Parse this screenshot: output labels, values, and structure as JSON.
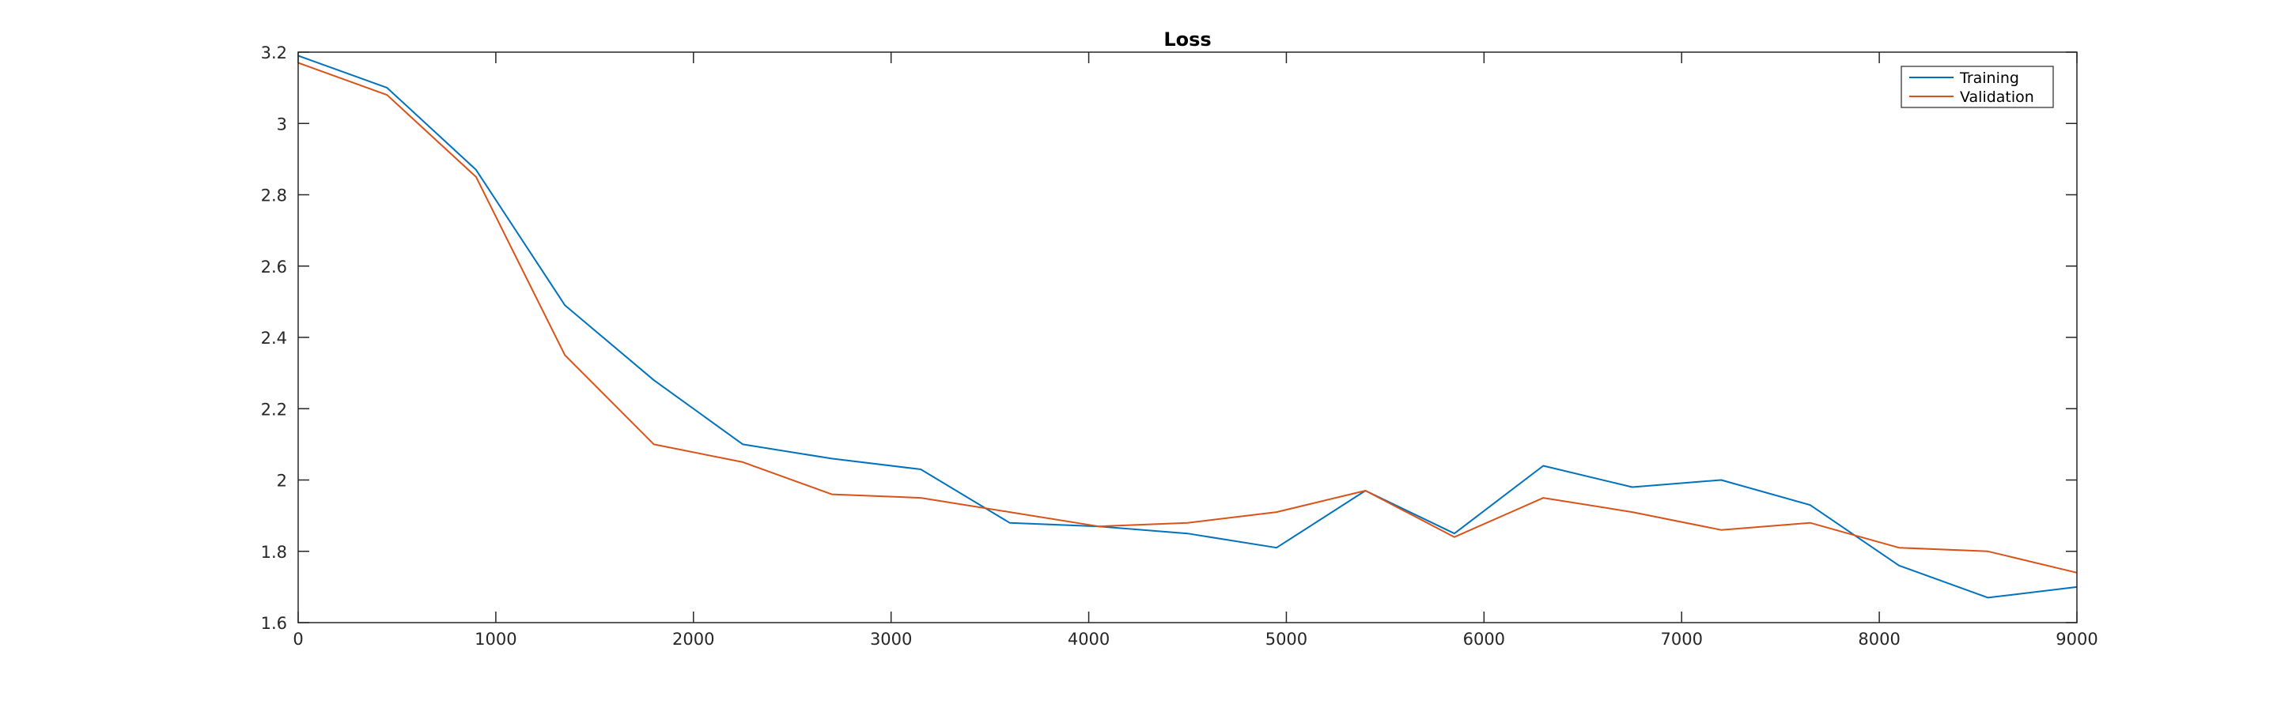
{
  "chart_data": {
    "type": "line",
    "title": "Loss",
    "xlabel": "",
    "ylabel": "",
    "xlim": [
      0,
      9000
    ],
    "ylim": [
      1.6,
      3.2
    ],
    "xticks": [
      0,
      1000,
      2000,
      3000,
      4000,
      5000,
      6000,
      7000,
      8000,
      9000
    ],
    "yticks": [
      1.6,
      1.8,
      2,
      2.2,
      2.4,
      2.6,
      2.8,
      3,
      3.2
    ],
    "ytick_labels": [
      "1.6",
      "1.8",
      "2",
      "2.2",
      "2.4",
      "2.6",
      "2.8",
      "3",
      "3.2"
    ],
    "grid": false,
    "legend_position": "top-right",
    "x": [
      0,
      450,
      900,
      1350,
      1800,
      2250,
      2700,
      3150,
      3600,
      4050,
      4500,
      4950,
      5400,
      5850,
      6300,
      6750,
      7200,
      7650,
      8100,
      8550,
      9000
    ],
    "series": [
      {
        "name": "Training",
        "color": "#0072BD",
        "values": [
          3.19,
          3.1,
          2.87,
          2.49,
          2.28,
          2.1,
          2.06,
          2.03,
          1.88,
          1.87,
          1.85,
          1.81,
          1.97,
          1.85,
          2.04,
          1.98,
          2.0,
          1.93,
          1.76,
          1.67,
          1.7
        ]
      },
      {
        "name": "Validation",
        "color": "#D95319",
        "values": [
          3.17,
          3.08,
          2.85,
          2.35,
          2.1,
          2.05,
          1.96,
          1.95,
          1.91,
          1.87,
          1.88,
          1.91,
          1.97,
          1.84,
          1.95,
          1.91,
          1.86,
          1.88,
          1.81,
          1.8,
          1.74
        ]
      }
    ]
  }
}
